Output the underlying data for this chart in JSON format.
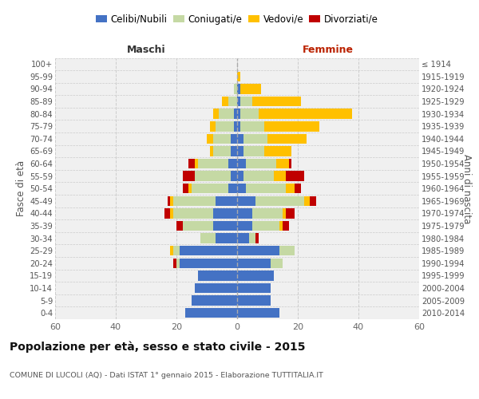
{
  "age_groups": [
    "0-4",
    "5-9",
    "10-14",
    "15-19",
    "20-24",
    "25-29",
    "30-34",
    "35-39",
    "40-44",
    "45-49",
    "50-54",
    "55-59",
    "60-64",
    "65-69",
    "70-74",
    "75-79",
    "80-84",
    "85-89",
    "90-94",
    "95-99",
    "100+"
  ],
  "birth_years": [
    "2010-2014",
    "2005-2009",
    "2000-2004",
    "1995-1999",
    "1990-1994",
    "1985-1989",
    "1980-1984",
    "1975-1979",
    "1970-1974",
    "1965-1969",
    "1960-1964",
    "1955-1959",
    "1950-1954",
    "1945-1949",
    "1940-1944",
    "1935-1939",
    "1930-1934",
    "1925-1929",
    "1920-1924",
    "1915-1919",
    "≤ 1914"
  ],
  "maschi": {
    "celibi": [
      17,
      15,
      14,
      13,
      19,
      19,
      7,
      8,
      8,
      7,
      3,
      2,
      3,
      2,
      2,
      1,
      1,
      0,
      0,
      0,
      0
    ],
    "coniugati": [
      0,
      0,
      0,
      0,
      1,
      2,
      5,
      10,
      13,
      14,
      12,
      12,
      10,
      6,
      6,
      6,
      5,
      3,
      1,
      0,
      0
    ],
    "vedovi": [
      0,
      0,
      0,
      0,
      0,
      1,
      0,
      0,
      1,
      1,
      1,
      0,
      1,
      1,
      2,
      2,
      2,
      2,
      0,
      0,
      0
    ],
    "divorziati": [
      0,
      0,
      0,
      0,
      1,
      0,
      0,
      2,
      2,
      1,
      2,
      4,
      2,
      0,
      0,
      0,
      0,
      0,
      0,
      0,
      0
    ]
  },
  "femmine": {
    "nubili": [
      14,
      11,
      11,
      12,
      11,
      14,
      4,
      5,
      5,
      6,
      3,
      2,
      3,
      2,
      2,
      1,
      1,
      1,
      1,
      0,
      0
    ],
    "coniugate": [
      0,
      0,
      0,
      0,
      4,
      5,
      2,
      9,
      10,
      16,
      13,
      10,
      10,
      7,
      8,
      8,
      6,
      4,
      0,
      0,
      0
    ],
    "vedove": [
      0,
      0,
      0,
      0,
      0,
      0,
      0,
      1,
      1,
      2,
      3,
      4,
      4,
      9,
      13,
      18,
      31,
      16,
      7,
      1,
      0
    ],
    "divorziate": [
      0,
      0,
      0,
      0,
      0,
      0,
      1,
      2,
      3,
      2,
      2,
      6,
      1,
      0,
      0,
      0,
      0,
      0,
      0,
      0,
      0
    ]
  },
  "color_celibi": "#4472c4",
  "color_coniugati": "#c5d9a4",
  "color_vedovi": "#ffc000",
  "color_divorziati": "#c00000",
  "xlim": 60,
  "title": "Popolazione per età, sesso e stato civile - 2015",
  "subtitle": "COMUNE DI LUCOLI (AQ) - Dati ISTAT 1° gennaio 2015 - Elaborazione TUTTITALIA.IT",
  "ylabel_left": "Fasce di età",
  "ylabel_right": "Anni di nascita",
  "xlabel_maschi": "Maschi",
  "xlabel_femmine": "Femmine",
  "bg_color": "#f0f0f0",
  "fig_bg": "#ffffff"
}
